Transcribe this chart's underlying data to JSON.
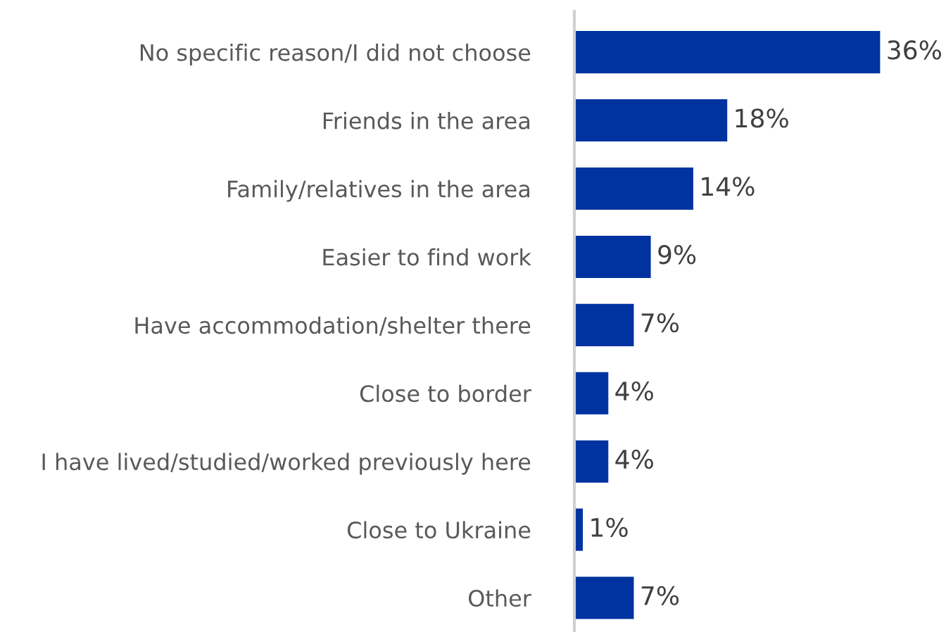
{
  "chart_data": {
    "type": "bar",
    "orientation": "horizontal",
    "categories": [
      "No specific reason/I did not choose",
      "Friends in the area",
      "Family/relatives in the area",
      "Easier to find work",
      "Have accommodation/shelter there",
      "Close to border",
      "I have lived/studied/worked previously here",
      "Close to Ukraine",
      "Other"
    ],
    "values": [
      36,
      18,
      14,
      9,
      7,
      4,
      4,
      1,
      7
    ],
    "value_labels": [
      "36%",
      "18%",
      "14%",
      "9%",
      "7%",
      "4%",
      "4%",
      "1%",
      "7%"
    ],
    "color": "#0033a0",
    "grid": false,
    "legend": false
  }
}
